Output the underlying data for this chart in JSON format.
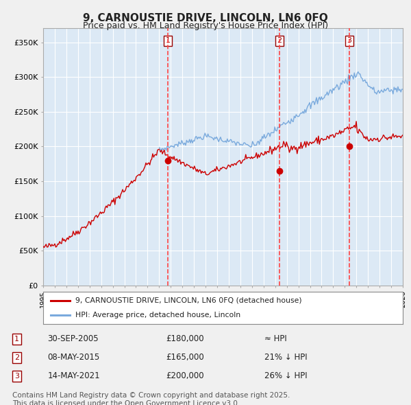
{
  "title": "9, CARNOUSTIE DRIVE, LINCOLN, LN6 0FQ",
  "subtitle": "Price paid vs. HM Land Registry's House Price Index (HPI)",
  "bg_color": "#f0f0f0",
  "plot_bg_color": "#dce9f5",
  "grid_color": "#ffffff",
  "red_line_color": "#cc0000",
  "blue_line_color": "#7aaadd",
  "marker_color": "#cc0000",
  "vline_color": "#ff4444",
  "ylim": [
    0,
    370000
  ],
  "yticks": [
    0,
    50000,
    100000,
    150000,
    200000,
    250000,
    300000,
    350000
  ],
  "ytick_labels": [
    "£0",
    "£50K",
    "£100K",
    "£150K",
    "£200K",
    "£250K",
    "£300K",
    "£350K"
  ],
  "year_start": 1995,
  "year_end": 2026,
  "transactions": [
    {
      "label": "1",
      "date": 2005.75,
      "price": 180000,
      "note": "≈ HPI"
    },
    {
      "label": "2",
      "date": 2015.35,
      "price": 165000,
      "note": "21% ↓ HPI"
    },
    {
      "label": "3",
      "date": 2021.37,
      "price": 200000,
      "note": "26% ↓ HPI"
    }
  ],
  "transaction_dates_display": [
    "30-SEP-2005",
    "08-MAY-2015",
    "14-MAY-2021"
  ],
  "transaction_prices_display": [
    "£180,000",
    "£165,000",
    "£200,000"
  ],
  "transaction_notes_display": [
    "≈ HPI",
    "21% ↓ HPI",
    "26% ↓ HPI"
  ],
  "legend_red_label": "9, CARNOUSTIE DRIVE, LINCOLN, LN6 0FQ (detached house)",
  "legend_blue_label": "HPI: Average price, detached house, Lincoln",
  "footer": "Contains HM Land Registry data © Crown copyright and database right 2025.\nThis data is licensed under the Open Government Licence v3.0.",
  "footer_fontsize": 7.5,
  "title_fontsize": 11,
  "subtitle_fontsize": 9
}
